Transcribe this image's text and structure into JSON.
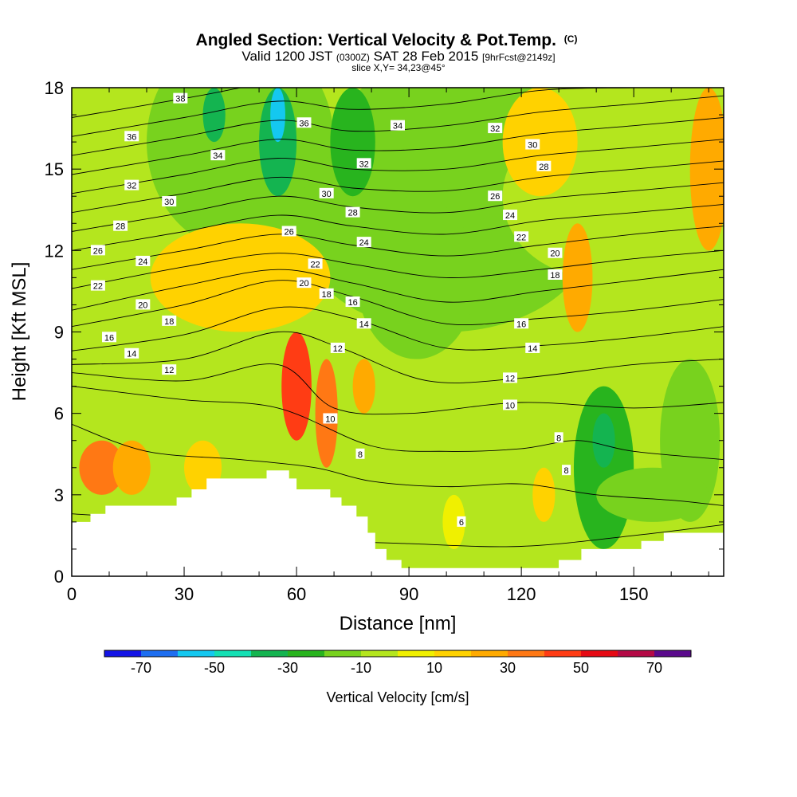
{
  "chart_data": {
    "type": "heatmap",
    "title_main": "Angled Section: Vertical Velocity & Pot.Temp.",
    "title_mark": "(C)",
    "title_line2_a": "Valid 1200 JST",
    "title_line2_b": "(0300Z)",
    "title_line2_c": "SAT 28 Feb 2015",
    "title_line2_d": "[9hrFcst@2149z]",
    "title_line3": "slice X,Y= 34,23@45°",
    "xlabel": "Distance [nm]",
    "ylabel": "Height [Kft MSL]",
    "xlim": [
      0,
      174
    ],
    "ylim": [
      0,
      18
    ],
    "xticks": [
      0,
      30,
      60,
      90,
      120,
      150
    ],
    "yticks": [
      0,
      3,
      6,
      9,
      12,
      15,
      18
    ],
    "colorbar": {
      "label": "Vertical Velocity [cm/s]",
      "bounds": [
        -80,
        -70,
        -60,
        -50,
        -40,
        -30,
        -20,
        -10,
        0,
        10,
        20,
        30,
        40,
        50,
        60,
        70,
        80
      ],
      "colors": [
        "#1414e6",
        "#1e6ef0",
        "#14c8f0",
        "#14e0b4",
        "#14b450",
        "#28b41e",
        "#78d21e",
        "#b4e61e",
        "#f0f000",
        "#ffd200",
        "#ffaa00",
        "#ff7814",
        "#ff3c14",
        "#e60a14",
        "#b40a46",
        "#5a0a8c"
      ],
      "ticks": [
        -70,
        -50,
        -30,
        -10,
        10,
        30,
        50,
        70
      ]
    },
    "terrain_kft": [
      [
        0,
        2.0
      ],
      [
        5,
        2.0
      ],
      [
        5,
        2.3
      ],
      [
        9,
        2.3
      ],
      [
        9,
        2.6
      ],
      [
        28,
        2.6
      ],
      [
        28,
        2.9
      ],
      [
        32,
        2.9
      ],
      [
        32,
        3.2
      ],
      [
        36,
        3.2
      ],
      [
        36,
        3.6
      ],
      [
        52,
        3.6
      ],
      [
        52,
        3.9
      ],
      [
        58,
        3.9
      ],
      [
        58,
        3.6
      ],
      [
        60,
        3.6
      ],
      [
        60,
        3.2
      ],
      [
        69,
        3.2
      ],
      [
        69,
        2.9
      ],
      [
        72,
        2.9
      ],
      [
        72,
        2.6
      ],
      [
        76,
        2.6
      ],
      [
        76,
        2.2
      ],
      [
        79,
        2.2
      ],
      [
        79,
        1.6
      ],
      [
        81,
        1.6
      ],
      [
        81,
        1.0
      ],
      [
        84,
        1.0
      ],
      [
        84,
        0.6
      ],
      [
        88,
        0.6
      ],
      [
        88,
        0.3
      ],
      [
        130,
        0.3
      ],
      [
        130,
        0.6
      ],
      [
        136,
        0.6
      ],
      [
        136,
        1.0
      ],
      [
        152,
        1.0
      ],
      [
        152,
        1.3
      ],
      [
        158,
        1.3
      ],
      [
        158,
        1.6
      ],
      [
        174,
        1.6
      ]
    ],
    "theta_contours": [
      {
        "level": 4,
        "points": [
          [
            0,
            2.3
          ],
          [
            30,
            2.0
          ],
          [
            60,
            1.4
          ],
          [
            90,
            1.2
          ],
          [
            120,
            1.1
          ],
          [
            150,
            1.5
          ],
          [
            174,
            1.9
          ]
        ]
      },
      {
        "level": 6,
        "points": [
          [
            0,
            5.6
          ],
          [
            20,
            4.6
          ],
          [
            45,
            4.3
          ],
          [
            65,
            4.0
          ],
          [
            80,
            3.5
          ],
          [
            100,
            3.3
          ],
          [
            120,
            3.4
          ],
          [
            140,
            3.0
          ],
          [
            160,
            2.8
          ],
          [
            174,
            2.6
          ]
        ]
      },
      {
        "level": 8,
        "points": [
          [
            0,
            7.0
          ],
          [
            30,
            6.5
          ],
          [
            55,
            6.2
          ],
          [
            80,
            4.8
          ],
          [
            100,
            4.6
          ],
          [
            120,
            4.7
          ],
          [
            135,
            5.0
          ],
          [
            150,
            4.6
          ],
          [
            174,
            4.3
          ]
        ]
      },
      {
        "level": 10,
        "points": [
          [
            0,
            7.5
          ],
          [
            30,
            7.2
          ],
          [
            55,
            7.8
          ],
          [
            70,
            6.2
          ],
          [
            90,
            6.0
          ],
          [
            120,
            6.4
          ],
          [
            150,
            6.2
          ],
          [
            174,
            6.4
          ]
        ]
      },
      {
        "level": 12,
        "points": [
          [
            0,
            7.8
          ],
          [
            30,
            8.0
          ],
          [
            55,
            9.0
          ],
          [
            72,
            8.4
          ],
          [
            95,
            7.2
          ],
          [
            120,
            7.3
          ],
          [
            150,
            7.8
          ],
          [
            174,
            8.0
          ]
        ]
      },
      {
        "level": 14,
        "points": [
          [
            0,
            8.3
          ],
          [
            30,
            8.9
          ],
          [
            55,
            9.9
          ],
          [
            75,
            9.5
          ],
          [
            100,
            8.4
          ],
          [
            125,
            8.5
          ],
          [
            150,
            8.8
          ],
          [
            174,
            9.2
          ]
        ]
      },
      {
        "level": 16,
        "points": [
          [
            0,
            9.2
          ],
          [
            30,
            10.0
          ],
          [
            55,
            10.9
          ],
          [
            75,
            10.3
          ],
          [
            100,
            9.3
          ],
          [
            125,
            9.5
          ],
          [
            150,
            9.8
          ],
          [
            174,
            10.2
          ]
        ]
      },
      {
        "level": 18,
        "points": [
          [
            0,
            9.8
          ],
          [
            30,
            10.7
          ],
          [
            55,
            11.3
          ],
          [
            75,
            10.8
          ],
          [
            100,
            10.1
          ],
          [
            125,
            10.5
          ],
          [
            150,
            10.9
          ],
          [
            174,
            11.3
          ]
        ]
      },
      {
        "level": 20,
        "points": [
          [
            0,
            10.6
          ],
          [
            30,
            11.4
          ],
          [
            55,
            11.9
          ],
          [
            75,
            11.5
          ],
          [
            100,
            11.0
          ],
          [
            125,
            11.3
          ],
          [
            150,
            11.7
          ],
          [
            174,
            12.0
          ]
        ]
      },
      {
        "level": 22,
        "points": [
          [
            0,
            11.3
          ],
          [
            30,
            12.0
          ],
          [
            55,
            12.6
          ],
          [
            75,
            12.2
          ],
          [
            100,
            11.8
          ],
          [
            125,
            12.2
          ],
          [
            150,
            12.6
          ],
          [
            174,
            12.9
          ]
        ]
      },
      {
        "level": 24,
        "points": [
          [
            0,
            12.0
          ],
          [
            30,
            12.7
          ],
          [
            55,
            13.3
          ],
          [
            75,
            12.9
          ],
          [
            100,
            12.6
          ],
          [
            125,
            13.1
          ],
          [
            150,
            13.4
          ],
          [
            174,
            13.7
          ]
        ]
      },
      {
        "level": 26,
        "points": [
          [
            0,
            12.7
          ],
          [
            30,
            13.4
          ],
          [
            55,
            14.0
          ],
          [
            75,
            13.6
          ],
          [
            100,
            13.4
          ],
          [
            125,
            13.9
          ],
          [
            150,
            14.2
          ],
          [
            174,
            14.5
          ]
        ]
      },
      {
        "level": 28,
        "points": [
          [
            0,
            13.4
          ],
          [
            30,
            14.1
          ],
          [
            55,
            14.7
          ],
          [
            75,
            14.3
          ],
          [
            100,
            14.2
          ],
          [
            125,
            14.7
          ],
          [
            150,
            15.0
          ],
          [
            174,
            15.3
          ]
        ]
      },
      {
        "level": 30,
        "points": [
          [
            0,
            14.1
          ],
          [
            30,
            14.8
          ],
          [
            55,
            15.4
          ],
          [
            75,
            15.0
          ],
          [
            100,
            15.0
          ],
          [
            125,
            15.5
          ],
          [
            150,
            15.8
          ],
          [
            174,
            16.1
          ]
        ]
      },
      {
        "level": 32,
        "points": [
          [
            0,
            14.8
          ],
          [
            30,
            15.5
          ],
          [
            55,
            16.1
          ],
          [
            75,
            15.7
          ],
          [
            100,
            15.8
          ],
          [
            125,
            16.3
          ],
          [
            150,
            16.6
          ],
          [
            174,
            16.9
          ]
        ]
      },
      {
        "level": 34,
        "points": [
          [
            0,
            15.5
          ],
          [
            30,
            16.2
          ],
          [
            55,
            16.8
          ],
          [
            75,
            16.4
          ],
          [
            100,
            16.6
          ],
          [
            125,
            17.1
          ],
          [
            150,
            17.4
          ],
          [
            174,
            17.7
          ]
        ]
      },
      {
        "level": 36,
        "points": [
          [
            0,
            16.2
          ],
          [
            30,
            16.9
          ],
          [
            55,
            17.5
          ],
          [
            75,
            17.2
          ],
          [
            100,
            17.4
          ],
          [
            125,
            17.9
          ],
          [
            150,
            18.0
          ],
          [
            174,
            18.0
          ]
        ]
      },
      {
        "level": 38,
        "points": [
          [
            0,
            16.9
          ],
          [
            30,
            17.6
          ],
          [
            45,
            18.0
          ]
        ]
      }
    ],
    "contour_labels": [
      {
        "text": "38",
        "x": 29,
        "y": 17.6
      },
      {
        "text": "36",
        "x": 16,
        "y": 16.2
      },
      {
        "text": "36",
        "x": 62,
        "y": 16.7
      },
      {
        "text": "34",
        "x": 39,
        "y": 15.5
      },
      {
        "text": "34",
        "x": 87,
        "y": 16.6
      },
      {
        "text": "32",
        "x": 16,
        "y": 14.4
      },
      {
        "text": "32",
        "x": 78,
        "y": 15.2
      },
      {
        "text": "32",
        "x": 113,
        "y": 16.5
      },
      {
        "text": "30",
        "x": 26,
        "y": 13.8
      },
      {
        "text": "30",
        "x": 68,
        "y": 14.1
      },
      {
        "text": "30",
        "x": 123,
        "y": 15.9
      },
      {
        "text": "28",
        "x": 13,
        "y": 12.9
      },
      {
        "text": "28",
        "x": 75,
        "y": 13.4
      },
      {
        "text": "28",
        "x": 126,
        "y": 15.1
      },
      {
        "text": "26",
        "x": 7,
        "y": 12.0
      },
      {
        "text": "26",
        "x": 58,
        "y": 12.7
      },
      {
        "text": "26",
        "x": 113,
        "y": 14.0
      },
      {
        "text": "24",
        "x": 19,
        "y": 11.6
      },
      {
        "text": "24",
        "x": 78,
        "y": 12.3
      },
      {
        "text": "24",
        "x": 117,
        "y": 13.3
      },
      {
        "text": "22",
        "x": 7,
        "y": 10.7
      },
      {
        "text": "22",
        "x": 65,
        "y": 11.5
      },
      {
        "text": "22",
        "x": 120,
        "y": 12.5
      },
      {
        "text": "20",
        "x": 19,
        "y": 10.0
      },
      {
        "text": "20",
        "x": 62,
        "y": 10.8
      },
      {
        "text": "20",
        "x": 129,
        "y": 11.9
      },
      {
        "text": "18",
        "x": 26,
        "y": 9.4
      },
      {
        "text": "18",
        "x": 68,
        "y": 10.4
      },
      {
        "text": "18",
        "x": 129,
        "y": 11.1
      },
      {
        "text": "16",
        "x": 10,
        "y": 8.8
      },
      {
        "text": "16",
        "x": 75,
        "y": 10.1
      },
      {
        "text": "16",
        "x": 120,
        "y": 9.3
      },
      {
        "text": "14",
        "x": 16,
        "y": 8.2
      },
      {
        "text": "14",
        "x": 78,
        "y": 9.3
      },
      {
        "text": "14",
        "x": 123,
        "y": 8.4
      },
      {
        "text": "12",
        "x": 26,
        "y": 7.6
      },
      {
        "text": "12",
        "x": 71,
        "y": 8.4
      },
      {
        "text": "12",
        "x": 117,
        "y": 7.3
      },
      {
        "text": "10",
        "x": 69,
        "y": 5.8
      },
      {
        "text": "10",
        "x": 117,
        "y": 6.3
      },
      {
        "text": "8",
        "x": 77,
        "y": 4.5
      },
      {
        "text": "8",
        "x": 130,
        "y": 5.1
      },
      {
        "text": "8",
        "x": 132,
        "y": 3.9
      },
      {
        "text": "6",
        "x": 104,
        "y": 2.0
      }
    ],
    "velocity_field_cms": [
      {
        "x": 45,
        "y": 16,
        "w": -20,
        "rx": 25,
        "ry": 4
      },
      {
        "x": 100,
        "y": 13,
        "w": -15,
        "rx": 40,
        "ry": 4
      },
      {
        "x": 100,
        "y": 16,
        "w": -20,
        "rx": 30,
        "ry": 3
      },
      {
        "x": 140,
        "y": 14,
        "w": -10,
        "rx": 25,
        "ry": 3
      },
      {
        "x": 92,
        "y": 11,
        "w": -18,
        "rx": 16,
        "ry": 3
      },
      {
        "x": 55,
        "y": 16,
        "w": -40,
        "rx": 5,
        "ry": 2
      },
      {
        "x": 55,
        "y": 17,
        "w": -60,
        "rx": 2,
        "ry": 1
      },
      {
        "x": 38,
        "y": 17,
        "w": -35,
        "rx": 3,
        "ry": 1
      },
      {
        "x": 75,
        "y": 16,
        "w": -30,
        "rx": 6,
        "ry": 2
      },
      {
        "x": 90,
        "y": 2,
        "w": -10,
        "rx": 10,
        "ry": 2
      },
      {
        "x": 115,
        "y": 2,
        "w": -8,
        "rx": 12,
        "ry": 1
      },
      {
        "x": 142,
        "y": 4,
        "w": -25,
        "rx": 8,
        "ry": 3
      },
      {
        "x": 142,
        "y": 5,
        "w": -40,
        "rx": 3,
        "ry": 1
      },
      {
        "x": 165,
        "y": 5,
        "w": -20,
        "rx": 8,
        "ry": 3
      },
      {
        "x": 155,
        "y": 3,
        "w": -15,
        "rx": 15,
        "ry": 1
      },
      {
        "x": 22,
        "y": 5,
        "w": -8,
        "rx": 3,
        "ry": 2
      },
      {
        "x": 40,
        "y": 5,
        "w": -8,
        "rx": 3,
        "ry": 2
      },
      {
        "x": 8,
        "y": 4,
        "w": 30,
        "rx": 6,
        "ry": 1
      },
      {
        "x": 16,
        "y": 4,
        "w": 22,
        "rx": 5,
        "ry": 1
      },
      {
        "x": 35,
        "y": 4,
        "w": 15,
        "rx": 5,
        "ry": 1
      },
      {
        "x": 60,
        "y": 7,
        "w": 45,
        "rx": 4,
        "ry": 2
      },
      {
        "x": 68,
        "y": 6,
        "w": 30,
        "rx": 3,
        "ry": 2
      },
      {
        "x": 78,
        "y": 7,
        "w": 20,
        "rx": 3,
        "ry": 1
      },
      {
        "x": 45,
        "y": 11,
        "w": 10,
        "rx": 24,
        "ry": 2
      },
      {
        "x": 125,
        "y": 16,
        "w": 12,
        "rx": 10,
        "ry": 2
      },
      {
        "x": 135,
        "y": 11,
        "w": 25,
        "rx": 4,
        "ry": 2
      },
      {
        "x": 170,
        "y": 15,
        "w": 25,
        "rx": 5,
        "ry": 3
      },
      {
        "x": 102,
        "y": 2,
        "w": 8,
        "rx": 3,
        "ry": 1
      },
      {
        "x": 126,
        "y": 3,
        "w": 12,
        "rx": 3,
        "ry": 1
      }
    ]
  }
}
